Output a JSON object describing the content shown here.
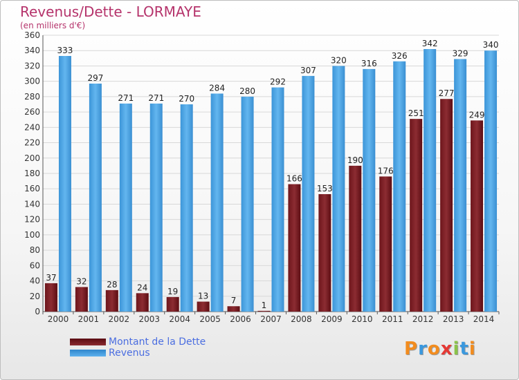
{
  "title": "Revenus/Dette - LORMAYE",
  "subtitle": "(en milliers d'€)",
  "legend": [
    {
      "label": "Montant de la Dette",
      "color": "#7a1f25"
    },
    {
      "label": "Revenus",
      "color": "#3a98de"
    }
  ],
  "logo": {
    "text": "Proxiti",
    "letters": [
      "P",
      "r",
      "o",
      "x",
      "i",
      "t",
      "i"
    ],
    "colors": [
      "#f28c1e",
      "#3a98de",
      "#f28c1e",
      "#e53935",
      "#8bc34a",
      "#3a98de",
      "#f28c1e"
    ]
  },
  "chart_data": {
    "type": "bar",
    "title": "Revenus/Dette - LORMAYE",
    "categories": [
      "2000",
      "2001",
      "2002",
      "2003",
      "2004",
      "2005",
      "2006",
      "2007",
      "2008",
      "2009",
      "2010",
      "2011",
      "2012",
      "2013",
      "2014"
    ],
    "series": [
      {
        "name": "Montant de la Dette",
        "color": "#7a1f25",
        "values": [
          37,
          32,
          28,
          24,
          19,
          13,
          7,
          1,
          166,
          153,
          190,
          176,
          251,
          277,
          249
        ]
      },
      {
        "name": "Revenus",
        "color": "#3a98de",
        "values": [
          333,
          297,
          271,
          271,
          270,
          284,
          280,
          292,
          307,
          320,
          316,
          326,
          342,
          329,
          340
        ]
      }
    ],
    "ylim": [
      0,
      360
    ],
    "yticks": [
      0,
      20,
      40,
      60,
      80,
      100,
      120,
      140,
      160,
      180,
      200,
      220,
      240,
      260,
      280,
      300,
      320,
      340,
      360
    ],
    "grid": true,
    "legend_position": "bottom-left"
  }
}
